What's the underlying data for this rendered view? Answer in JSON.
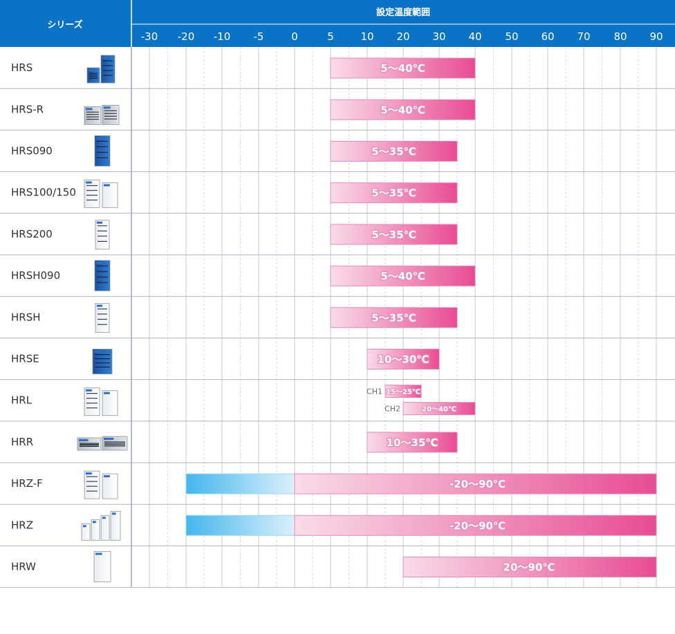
{
  "header": {
    "series_heading": "シリーズ",
    "range_heading": "設定温度範囲"
  },
  "colors": {
    "header_bg": "#0b73c6",
    "heat_start": "#f9dce9",
    "heat_end": "#e84c93",
    "cool_start": "#44b6ec",
    "cool_end": "#dcf0fb",
    "bar_border": "#e48abd",
    "grid_major": "#c9c9d2",
    "grid_minor": "#d6d6dd",
    "row_line": "#aeb3c0"
  },
  "chart_data": {
    "type": "bar",
    "title": "設定温度範囲",
    "xlabel": "",
    "ylabel": "シリーズ",
    "orientation": "horizontal",
    "x_ticks": [
      "-30",
      "-20",
      "-10",
      "-5",
      "0",
      "5",
      "10",
      "20",
      "30",
      "40",
      "50",
      "60",
      "70",
      "80",
      "90"
    ],
    "x_tick_values": [
      -30,
      -20,
      -10,
      -5,
      0,
      5,
      10,
      20,
      30,
      40,
      50,
      60,
      70,
      80,
      90
    ],
    "grid": true,
    "rows": [
      {
        "name": "HRS",
        "icon": "chiller-pair-blue-icon",
        "bars": [
          {
            "low": 5,
            "high": 40,
            "label": "5〜40℃"
          }
        ]
      },
      {
        "name": "HRS-R",
        "icon": "chiller-pair-grey-icon",
        "bars": [
          {
            "low": 5,
            "high": 40,
            "label": "5〜40℃"
          }
        ]
      },
      {
        "name": "HRS090",
        "icon": "chiller-tall-blue-icon",
        "bars": [
          {
            "low": 5,
            "high": 35,
            "label": "5〜35℃"
          }
        ]
      },
      {
        "name": "HRS100/150",
        "icon": "chiller-pair-white-icon",
        "bars": [
          {
            "low": 5,
            "high": 35,
            "label": "5〜35℃"
          }
        ]
      },
      {
        "name": "HRS200",
        "icon": "chiller-tall-white-icon",
        "bars": [
          {
            "low": 5,
            "high": 35,
            "label": "5〜35℃"
          }
        ]
      },
      {
        "name": "HRSH090",
        "icon": "chiller-tall-blue-icon",
        "bars": [
          {
            "low": 5,
            "high": 40,
            "label": "5〜40℃"
          }
        ]
      },
      {
        "name": "HRSH",
        "icon": "chiller-tall-white-icon",
        "bars": [
          {
            "low": 5,
            "high": 35,
            "label": "5〜35℃"
          }
        ]
      },
      {
        "name": "HRSE",
        "icon": "chiller-small-blue-icon",
        "bars": [
          {
            "low": 10,
            "high": 30,
            "label": "10〜30℃"
          }
        ]
      },
      {
        "name": "HRL",
        "icon": "chiller-pair-white-icon",
        "bars": [
          {
            "channel": "CH1",
            "low": 15,
            "high": 25,
            "label": "15〜25℃"
          },
          {
            "channel": "CH2",
            "low": 20,
            "high": 40,
            "label": "20〜40℃"
          }
        ]
      },
      {
        "name": "HRR",
        "icon": "chiller-rack-icon",
        "bars": [
          {
            "low": 10,
            "high": 35,
            "label": "10〜35℃"
          }
        ]
      },
      {
        "name": "HRZ-F",
        "icon": "chiller-pair-white-icon",
        "bars": [
          {
            "low": -20,
            "high": 90,
            "label": "-20〜90℃"
          }
        ]
      },
      {
        "name": "HRZ",
        "icon": "chiller-group-white-icon",
        "bars": [
          {
            "low": -20,
            "high": 90,
            "label": "-20〜90℃"
          }
        ]
      },
      {
        "name": "HRW",
        "icon": "chiller-single-white-icon",
        "bars": [
          {
            "low": 20,
            "high": 90,
            "label": "20〜90℃"
          }
        ]
      }
    ]
  }
}
